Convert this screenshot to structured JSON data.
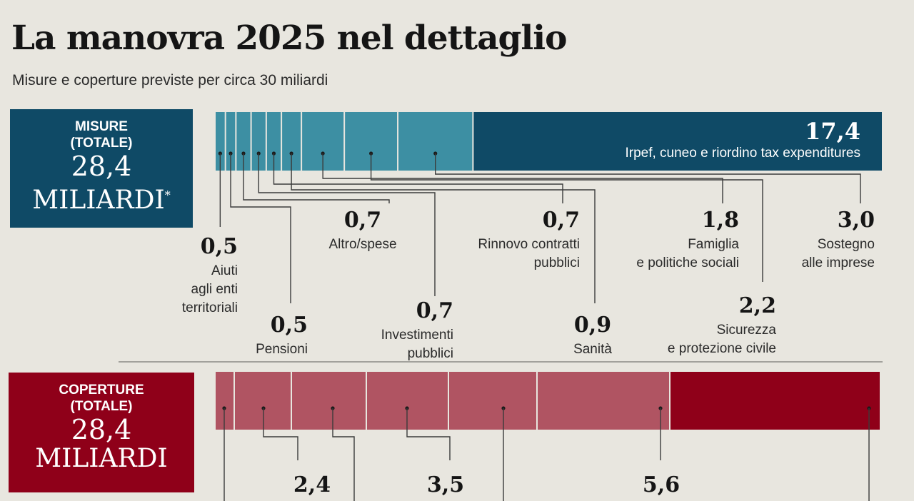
{
  "title": "La manovra 2025 nel dettaglio",
  "subtitle": "Misure e coperture previste per circa 30 miliardi",
  "colors": {
    "misure_dark": "#0f4a66",
    "misure_light": "#3d8fa3",
    "coperture_dark": "#8f0019",
    "coperture_light": "#b05462",
    "background": "#e8e6df"
  },
  "misure_box": {
    "label1": "MISURE",
    "label2": "(TOTALE)",
    "value": "28,4",
    "unit": "MILIARDI",
    "note": "*"
  },
  "coperture_box": {
    "label1": "COPERTURE",
    "label2": "(TOTALE)",
    "value": "28,4",
    "unit": "MILIARDI"
  },
  "chart_data": [
    {
      "type": "bar",
      "name": "Misure",
      "total": 28.4,
      "segments": [
        {
          "value": 0.5,
          "value_label": "0,5",
          "label": [
            "Aiuti",
            "agli enti",
            "territoriali"
          ]
        },
        {
          "value": 0.5,
          "value_label": "0,5",
          "label": [
            "Pensioni"
          ]
        },
        {
          "value": 0.7,
          "value_label": "0,7",
          "label": [
            "Altro/spese"
          ]
        },
        {
          "value": 0.7,
          "value_label": "0,7",
          "label": [
            "Investimenti",
            "pubblici"
          ]
        },
        {
          "value": 0.7,
          "value_label": "0,7",
          "label": [
            "Rinnovo contratti",
            "pubblici"
          ]
        },
        {
          "value": 0.9,
          "value_label": "0,9",
          "label": [
            "Sanità"
          ]
        },
        {
          "value": 1.8,
          "value_label": "1,8",
          "label": [
            "Famiglia",
            "e politiche sociali"
          ]
        },
        {
          "value": 2.2,
          "value_label": "2,2",
          "label": [
            "Sicurezza",
            "e protezione civile"
          ]
        },
        {
          "value": 3.0,
          "value_label": "3,0",
          "label": [
            "Sostegno",
            "alle imprese"
          ]
        },
        {
          "value": 17.4,
          "value_label": "17,4",
          "label": [
            "Irpef, cuneo e riordino tax expenditures"
          ]
        }
      ]
    },
    {
      "type": "bar",
      "name": "Coperture",
      "total": 28.4,
      "segments": [
        {
          "value_label": "2,4",
          "label": []
        },
        {
          "value_label": "3,5",
          "label": []
        },
        {
          "value_label": "5,6",
          "label": []
        }
      ]
    }
  ]
}
